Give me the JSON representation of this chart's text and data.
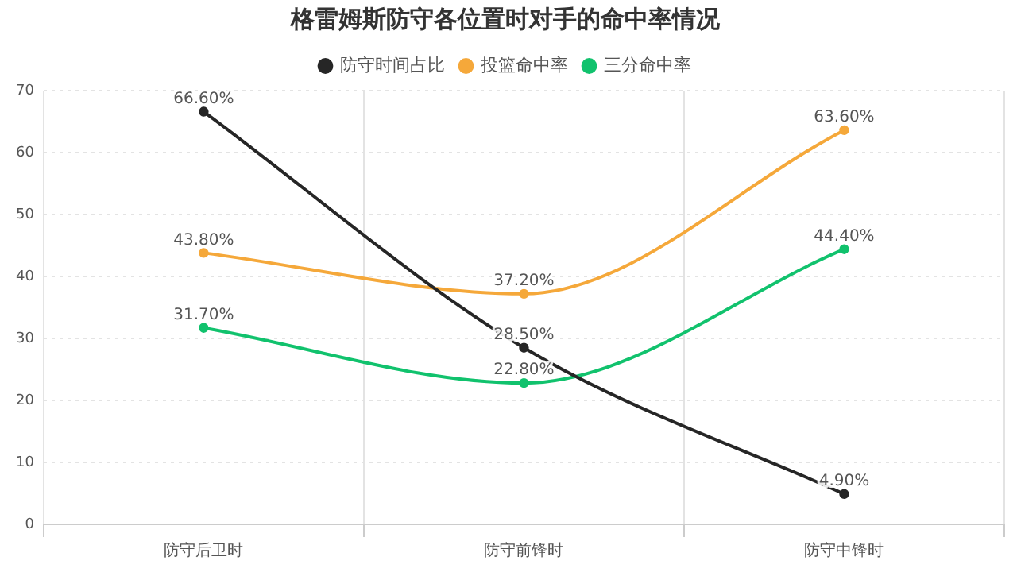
{
  "chart_data": {
    "type": "line",
    "title": "格雷姆斯防守各位置时对手的命中率情况",
    "categories": [
      "防守后卫时",
      "防守前锋时",
      "防守中锋时"
    ],
    "series": [
      {
        "name": "防守时间占比",
        "color": "#262626",
        "values": [
          66.6,
          28.5,
          4.9
        ],
        "value_labels": [
          "66.60%",
          "28.50%",
          "4.90%"
        ]
      },
      {
        "name": "投篮命中率",
        "color": "#f5a83a",
        "values": [
          43.8,
          37.2,
          63.6
        ],
        "value_labels": [
          "43.80%",
          "37.20%",
          "63.60%"
        ]
      },
      {
        "name": "三分命中率",
        "color": "#11c26d",
        "values": [
          31.7,
          22.8,
          44.4
        ],
        "value_labels": [
          "31.70%",
          "22.80%",
          "44.40%"
        ]
      }
    ],
    "ylim": [
      0,
      70
    ],
    "yticks": [
      0,
      10,
      20,
      30,
      40,
      50,
      60,
      70
    ],
    "grid": true,
    "legend": "top",
    "marker": "circle",
    "line_style": "solid"
  }
}
